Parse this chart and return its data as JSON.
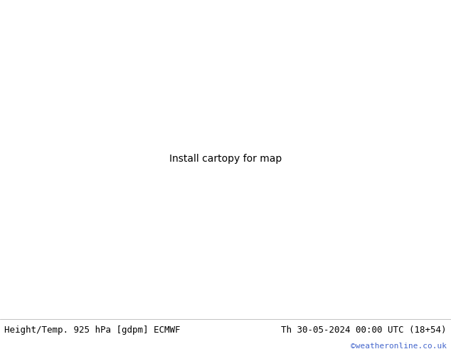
{
  "title_left": "Height/Temp. 925 hPa [gdpm] ECMWF",
  "title_right": "Th 30-05-2024 00:00 UTC (18+54)",
  "credit": "©weatheronline.co.uk",
  "bg_color": "#ffffff",
  "bottom_bar_color": "#ffffff",
  "title_fontsize": 9.0,
  "credit_fontsize": 8.0,
  "credit_color": "#4466cc",
  "title_color": "#000000",
  "land_green": "#c8f0a0",
  "land_gray": "#b8b8b8",
  "ocean_color": "#e0e0e0",
  "border_color": "#444444",
  "coast_color": "#000000",
  "orange": "#ff8c00",
  "red": "#cc0000",
  "magenta": "#ff00aa",
  "teal": "#00bb88",
  "lime": "#88cc00",
  "black": "#000000"
}
